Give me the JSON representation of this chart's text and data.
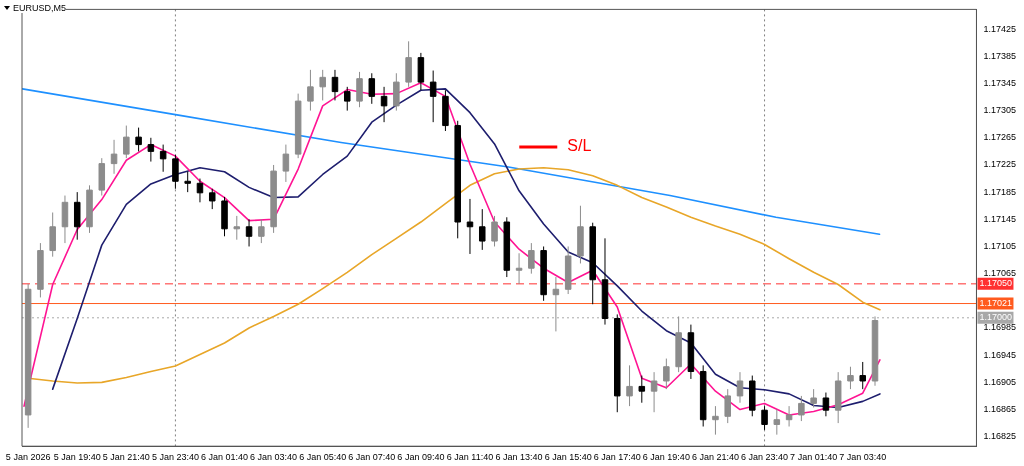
{
  "chart_data": {
    "type": "candlestick",
    "title": "EURUSD,M5",
    "colors": [
      "#8c8c8c",
      "#8c8c8c",
      "#8c8c8c",
      "#8c8c8c",
      "#000000",
      "#8c8c8c",
      "#8c8c8c",
      "#8c8c8c",
      "#8c8c8c",
      "#000000",
      "#000000",
      "#000000",
      "#000000",
      "#000000",
      "#000000",
      "#000000",
      "#000000",
      "#8c8c8c",
      "#000000",
      "#8c8c8c",
      "#8c8c8c",
      "#8c8c8c",
      "#8c8c8c",
      "#8c8c8c",
      "#8c8c8c",
      "#000000",
      "#000000",
      "#8c8c8c",
      "#000000",
      "#000000",
      "#8c8c8c",
      "#8c8c8c",
      "#000000",
      "#000000",
      "#000000",
      "#000000",
      "#000000",
      "#000000",
      "#8c8c8c",
      "#000000",
      "#8c8c8c",
      "#8c8c8c",
      "#000000",
      "#8c8c8c",
      "#8c8c8c",
      "#8c8c8c",
      "#000000",
      "#000000",
      "#000000",
      "#8c8c8c",
      "#000000",
      "#8c8c8c",
      "#8c8c8c",
      "#8c8c8c",
      "#000000",
      "#000000",
      "#8c8c8c",
      "#8c8c8c",
      "#8c8c8c",
      "#000000",
      "#000000",
      "#8c8c8c",
      "#8c8c8c",
      "#8c8c8c",
      "#8c8c8c",
      "#000000",
      "#8c8c8c",
      "#8c8c8c",
      "#000000",
      "#8c8c8c"
    ],
    "x": [
      "2026-01-05T17:40",
      "2026-01-05T18:10",
      "2026-01-05T18:40",
      "2026-01-05T19:10",
      "2026-01-05T19:40",
      "2026-01-05T20:10",
      "2026-01-05T20:40",
      "2026-01-05T21:10",
      "2026-01-05T21:40",
      "2026-01-05T22:10",
      "2026-01-05T22:40",
      "2026-01-05T23:10",
      "2026-01-05T23:40",
      "2026-01-06T00:10",
      "2026-01-06T00:40",
      "2026-01-06T01:10",
      "2026-01-06T01:40",
      "2026-01-06T02:10",
      "2026-01-06T02:40",
      "2026-01-06T03:10",
      "2026-01-06T03:40",
      "2026-01-06T04:10",
      "2026-01-06T04:40",
      "2026-01-06T05:10",
      "2026-01-06T05:40",
      "2026-01-06T06:10",
      "2026-01-06T06:40",
      "2026-01-06T07:10",
      "2026-01-06T07:40",
      "2026-01-06T08:10",
      "2026-01-06T08:40",
      "2026-01-06T09:10",
      "2026-01-06T09:40",
      "2026-01-06T10:10",
      "2026-01-06T10:40",
      "2026-01-06T11:10",
      "2026-01-06T11:40",
      "2026-01-06T12:10",
      "2026-01-06T12:40",
      "2026-01-06T13:10",
      "2026-01-06T13:40",
      "2026-01-06T14:10",
      "2026-01-06T14:40",
      "2026-01-06T15:10",
      "2026-01-06T15:40",
      "2026-01-06T16:10",
      "2026-01-06T16:40",
      "2026-01-06T17:10",
      "2026-01-06T17:40",
      "2026-01-06T18:10",
      "2026-01-06T18:40",
      "2026-01-06T19:10",
      "2026-01-06T19:40",
      "2026-01-06T20:10",
      "2026-01-06T20:40",
      "2026-01-06T21:10",
      "2026-01-06T21:40",
      "2026-01-06T22:10",
      "2026-01-06T22:40",
      "2026-01-06T23:10",
      "2026-01-06T23:40",
      "2026-01-07T00:10",
      "2026-01-07T00:40",
      "2026-01-07T01:10",
      "2026-01-07T01:40",
      "2026-01-07T02:10",
      "2026-01-07T02:40",
      "2026-01-07T03:10",
      "2026-01-07T03:40",
      "2026-01-07T04:10"
    ],
    "ohlc": [
      [
        1.16857,
        1.1705,
        1.16838,
        1.17042
      ],
      [
        1.17042,
        1.1711,
        1.1703,
        1.17099
      ],
      [
        1.17099,
        1.17155,
        1.1709,
        1.17134
      ],
      [
        1.17134,
        1.1718,
        1.1711,
        1.1717
      ],
      [
        1.1717,
        1.17185,
        1.17115,
        1.17134
      ],
      [
        1.17134,
        1.17195,
        1.17125,
        1.17188
      ],
      [
        1.17188,
        1.17235,
        1.1718,
        1.17227
      ],
      [
        1.17227,
        1.17262,
        1.17212,
        1.17241
      ],
      [
        1.17241,
        1.17283,
        1.17235,
        1.17266
      ],
      [
        1.17266,
        1.1728,
        1.17245,
        1.17255
      ],
      [
        1.17255,
        1.17265,
        1.1723,
        1.17245
      ],
      [
        1.17245,
        1.17255,
        1.17215,
        1.17234
      ],
      [
        1.17234,
        1.1724,
        1.1719,
        1.17201
      ],
      [
        1.17201,
        1.17215,
        1.17185,
        1.17198
      ],
      [
        1.17198,
        1.17205,
        1.1717,
        1.17184
      ],
      [
        1.17184,
        1.1719,
        1.1716,
        1.17172
      ],
      [
        1.17172,
        1.17178,
        1.1712,
        1.17131
      ],
      [
        1.17131,
        1.1715,
        1.17115,
        1.17134
      ],
      [
        1.17134,
        1.17145,
        1.17105,
        1.1712
      ],
      [
        1.1712,
        1.17145,
        1.1711,
        1.17134
      ],
      [
        1.17134,
        1.17225,
        1.17125,
        1.17216
      ],
      [
        1.17216,
        1.17255,
        1.172,
        1.17241
      ],
      [
        1.17241,
        1.1733,
        1.17235,
        1.17319
      ],
      [
        1.17319,
        1.17365,
        1.17305,
        1.1734
      ],
      [
        1.1734,
        1.17365,
        1.1732,
        1.17354
      ],
      [
        1.17354,
        1.17365,
        1.1732,
        1.17333
      ],
      [
        1.17333,
        1.1734,
        1.17305,
        1.17319
      ],
      [
        1.17319,
        1.17362,
        1.1731,
        1.17352
      ],
      [
        1.17352,
        1.1736,
        1.17315,
        1.17326
      ],
      [
        1.17326,
        1.1734,
        1.17288,
        1.17312
      ],
      [
        1.17312,
        1.1736,
        1.17305,
        1.17347
      ],
      [
        1.17347,
        1.17407,
        1.1734,
        1.17383
      ],
      [
        1.17383,
        1.1739,
        1.17335,
        1.17347
      ],
      [
        1.17347,
        1.17364,
        1.17288,
        1.17326
      ],
      [
        1.17326,
        1.17335,
        1.17275,
        1.17283
      ],
      [
        1.17283,
        1.1729,
        1.17117,
        1.17141
      ],
      [
        1.17141,
        1.17175,
        1.17094,
        1.17134
      ],
      [
        1.17134,
        1.1716,
        1.171,
        1.17113
      ],
      [
        1.17113,
        1.1715,
        1.17105,
        1.17141
      ],
      [
        1.17141,
        1.17148,
        1.1706,
        1.1707
      ],
      [
        1.1707,
        1.17095,
        1.1705,
        1.17073
      ],
      [
        1.17073,
        1.1711,
        1.17065,
        1.17099
      ],
      [
        1.17099,
        1.17105,
        1.17025,
        1.17034
      ],
      [
        1.17034,
        1.1706,
        1.1698,
        1.17042
      ],
      [
        1.17042,
        1.17105,
        1.17035,
        1.17091
      ],
      [
        1.17091,
        1.17165,
        1.1708,
        1.17134
      ],
      [
        1.17134,
        1.1714,
        1.1702,
        1.17056
      ],
      [
        1.17056,
        1.17117,
        1.1699,
        1.16999
      ],
      [
        1.16999,
        1.17005,
        1.16861,
        1.16885
      ],
      [
        1.16885,
        1.1693,
        1.1687,
        1.16899
      ],
      [
        1.16899,
        1.16915,
        1.16875,
        1.16892
      ],
      [
        1.16892,
        1.1692,
        1.16861,
        1.16907
      ],
      [
        1.16907,
        1.1694,
        1.16895,
        1.16928
      ],
      [
        1.16928,
        1.17002,
        1.1692,
        1.16978
      ],
      [
        1.16978,
        1.1699,
        1.1691,
        1.16921
      ],
      [
        1.16921,
        1.1693,
        1.1684,
        1.1685
      ],
      [
        1.1685,
        1.1687,
        1.16828,
        1.16855
      ],
      [
        1.16855,
        1.16895,
        1.16845,
        1.16885
      ],
      [
        1.16885,
        1.1692,
        1.16875,
        1.16907
      ],
      [
        1.16907,
        1.16915,
        1.16855,
        1.16864
      ],
      [
        1.16864,
        1.1687,
        1.16835,
        1.16843
      ],
      [
        1.16843,
        1.16865,
        1.16828,
        1.1685
      ],
      [
        1.1685,
        1.1687,
        1.1684,
        1.16857
      ],
      [
        1.16857,
        1.16885,
        1.16848,
        1.16874
      ],
      [
        1.16874,
        1.16895,
        1.16868,
        1.16882
      ],
      [
        1.16882,
        1.1689,
        1.16855,
        1.16864
      ],
      [
        1.16864,
        1.1692,
        1.16845,
        1.16907
      ],
      [
        1.16907,
        1.16928,
        1.16895,
        1.16915
      ],
      [
        1.16915,
        1.16935,
        1.16895,
        1.16907
      ],
      [
        1.16907,
        1.17002,
        1.169,
        1.16996
      ]
    ],
    "series": [
      {
        "type": "line",
        "color": "#ff1493",
        "x": [
          "2026-01-05T17:30",
          "2026-01-05T18:40",
          "2026-01-05T19:40",
          "2026-01-05T20:40",
          "2026-01-05T21:40",
          "2026-01-05T22:40",
          "2026-01-05T23:40",
          "2026-01-06T00:40",
          "2026-01-06T01:40",
          "2026-01-06T02:40",
          "2026-01-06T03:40",
          "2026-01-06T04:40",
          "2026-01-06T05:40",
          "2026-01-06T06:40",
          "2026-01-06T07:40",
          "2026-01-06T08:40",
          "2026-01-06T09:40",
          "2026-01-06T10:40",
          "2026-01-06T11:40",
          "2026-01-06T12:40",
          "2026-01-06T13:40",
          "2026-01-06T14:40",
          "2026-01-06T15:40",
          "2026-01-06T16:40",
          "2026-01-06T17:40",
          "2026-01-06T18:40",
          "2026-01-06T19:40",
          "2026-01-06T20:40",
          "2026-01-06T21:40",
          "2026-01-06T22:40",
          "2026-01-06T23:40",
          "2026-01-07T00:40",
          "2026-01-07T01:40",
          "2026-01-07T02:40",
          "2026-01-07T03:40",
          "2026-01-07T04:22"
        ],
        "values": [
          1.1687,
          1.17049,
          1.1713,
          1.17174,
          1.17232,
          1.17255,
          1.17238,
          1.17201,
          1.17177,
          1.17143,
          1.17145,
          1.17219,
          1.17312,
          1.17336,
          1.17329,
          1.1733,
          1.17346,
          1.17326,
          1.17226,
          1.17141,
          1.17101,
          1.17073,
          1.17052,
          1.1707,
          1.17016,
          1.16911,
          1.16897,
          1.16932,
          1.16892,
          1.16865,
          1.16874,
          1.16857,
          1.16862,
          1.16872,
          1.16889,
          1.16938
        ]
      },
      {
        "type": "line",
        "color": "#1e1e6e",
        "x": [
          "2026-01-05T18:40",
          "2026-01-05T19:40",
          "2026-01-05T20:40",
          "2026-01-05T21:40",
          "2026-01-05T22:40",
          "2026-01-05T23:40",
          "2026-01-06T00:40",
          "2026-01-06T01:40",
          "2026-01-06T02:40",
          "2026-01-06T03:40",
          "2026-01-06T04:40",
          "2026-01-06T05:40",
          "2026-01-06T06:40",
          "2026-01-06T07:40",
          "2026-01-06T08:40",
          "2026-01-06T09:40",
          "2026-01-06T10:40",
          "2026-01-06T11:40",
          "2026-01-06T12:40",
          "2026-01-06T13:40",
          "2026-01-06T14:40",
          "2026-01-06T15:40",
          "2026-01-06T16:40",
          "2026-01-06T17:40",
          "2026-01-06T18:40",
          "2026-01-06T19:40",
          "2026-01-06T20:40",
          "2026-01-06T21:40",
          "2026-01-06T22:40",
          "2026-01-06T23:40",
          "2026-01-07T00:40",
          "2026-01-07T01:40",
          "2026-01-07T02:40",
          "2026-01-07T03:40",
          "2026-01-07T04:22"
        ],
        "values": [
          1.16895,
          1.16999,
          1.17107,
          1.17167,
          1.17197,
          1.17211,
          1.17221,
          1.17215,
          1.17192,
          1.17177,
          1.17178,
          1.17211,
          1.17238,
          1.17288,
          1.17313,
          1.17335,
          1.17337,
          1.17302,
          1.17256,
          1.17187,
          1.17138,
          1.17097,
          1.17081,
          1.17047,
          1.1701,
          1.16981,
          1.16963,
          1.16917,
          1.16897,
          1.16894,
          1.16888,
          1.16871,
          1.16868,
          1.16877,
          1.16888
        ]
      },
      {
        "type": "line",
        "color": "#e8a628",
        "x": [
          "2026-01-05T17:40",
          "2026-01-05T18:40",
          "2026-01-05T19:40",
          "2026-01-05T20:40",
          "2026-01-05T21:40",
          "2026-01-05T22:40",
          "2026-01-05T23:40",
          "2026-01-06T00:40",
          "2026-01-06T01:40",
          "2026-01-06T02:40",
          "2026-01-06T03:40",
          "2026-01-06T04:40",
          "2026-01-06T05:40",
          "2026-01-06T06:40",
          "2026-01-06T07:40",
          "2026-01-06T08:40",
          "2026-01-06T09:40",
          "2026-01-06T10:40",
          "2026-01-06T11:40",
          "2026-01-06T12:40",
          "2026-01-06T13:40",
          "2026-01-06T14:40",
          "2026-01-06T15:40",
          "2026-01-06T16:40",
          "2026-01-06T17:40",
          "2026-01-06T18:40",
          "2026-01-06T19:40",
          "2026-01-06T20:40",
          "2026-01-06T21:40",
          "2026-01-06T22:40",
          "2026-01-06T23:40",
          "2026-01-07T00:40",
          "2026-01-07T01:40",
          "2026-01-07T02:40",
          "2026-01-07T03:40",
          "2026-01-07T04:22"
        ],
        "values": [
          1.16911,
          1.16907,
          1.16904,
          1.16905,
          1.16912,
          1.16921,
          1.16929,
          1.16946,
          1.16963,
          1.16985,
          1.17002,
          1.1702,
          1.17043,
          1.17067,
          1.17093,
          1.17117,
          1.17141,
          1.17168,
          1.17195,
          1.17212,
          1.17219,
          1.17221,
          1.17218,
          1.17209,
          1.17195,
          1.17177,
          1.17163,
          1.17148,
          1.17135,
          1.17123,
          1.17108,
          1.17087,
          1.17067,
          1.17049,
          1.17023,
          1.17012
        ]
      },
      {
        "type": "line",
        "color": "#1e90ff",
        "x": [
          "2026-01-05T17:26",
          "2026-01-05T23:51",
          "2026-01-06T06:25",
          "2026-01-06T13:14",
          "2026-01-06T19:49",
          "2026-01-07T00:08",
          "2026-01-07T04:21"
        ],
        "values": [
          1.17337,
          1.17298,
          1.17258,
          1.17222,
          1.1718,
          1.17148,
          1.17123
        ]
      }
    ],
    "xlim": [
      "2026-01-05T17:25",
      "2026-01-07T08:18"
    ],
    "xticks": [
      {
        "value": "2026-01-05T17:40",
        "label": "5 Jan 2026"
      },
      {
        "value": "2026-01-05T19:40",
        "label": "5 Jan 19:40"
      },
      {
        "value": "2026-01-05T21:40",
        "label": "5 Jan 21:40"
      },
      {
        "value": "2026-01-05T23:40",
        "label": "5 Jan 23:40"
      },
      {
        "value": "2026-01-06T01:40",
        "label": "6 Jan 01:40"
      },
      {
        "value": "2026-01-06T03:40",
        "label": "6 Jan 03:40"
      },
      {
        "value": "2026-01-06T05:40",
        "label": "6 Jan 05:40"
      },
      {
        "value": "2026-01-06T07:40",
        "label": "6 Jan 07:40"
      },
      {
        "value": "2026-01-06T09:40",
        "label": "6 Jan 09:40"
      },
      {
        "value": "2026-01-06T11:40",
        "label": "6 Jan 11:40"
      },
      {
        "value": "2026-01-06T13:40",
        "label": "6 Jan 13:40"
      },
      {
        "value": "2026-01-06T15:40",
        "label": "6 Jan 15:40"
      },
      {
        "value": "2026-01-06T17:40",
        "label": "6 Jan 17:40"
      },
      {
        "value": "2026-01-06T19:40",
        "label": "6 Jan 19:40"
      },
      {
        "value": "2026-01-06T21:40",
        "label": "6 Jan 21:40"
      },
      {
        "value": "2026-01-06T23:40",
        "label": "6 Jan 23:40"
      },
      {
        "value": "2026-01-07T01:40",
        "label": "7 Jan 01:40"
      },
      {
        "value": "2026-01-07T03:40",
        "label": "7 Jan 03:40"
      }
    ],
    "ylim": [
      1.16811,
      1.17454
    ],
    "yticks": [
      1.17425,
      1.17385,
      1.17345,
      1.17305,
      1.17265,
      1.17225,
      1.17185,
      1.17145,
      1.17105,
      1.17065,
      1.16985,
      1.16945,
      1.16905,
      1.16865,
      1.16825
    ],
    "ref_lines": [
      {
        "axis": "y",
        "value": 1.1705,
        "label": "1.17050",
        "color": "#ff3030",
        "line_style": "dashed"
      },
      {
        "axis": "y",
        "value": 1.17021,
        "label": "1.17021",
        "color": "#ff5a1e",
        "line_style": "solid"
      },
      {
        "axis": "y",
        "value": 1.17,
        "label": "1.17000",
        "color": "#a8a8a8",
        "line_style": "dotted"
      },
      {
        "axis": "x",
        "value": "2026-01-05T23:40",
        "color": "#808080",
        "line_style": "dotted"
      },
      {
        "axis": "x",
        "value": "2026-01-06T23:40",
        "color": "#808080",
        "line_style": "dotted"
      }
    ],
    "annotations": [
      "S/L"
    ],
    "grid": false,
    "legend": false,
    "marker": "none"
  }
}
